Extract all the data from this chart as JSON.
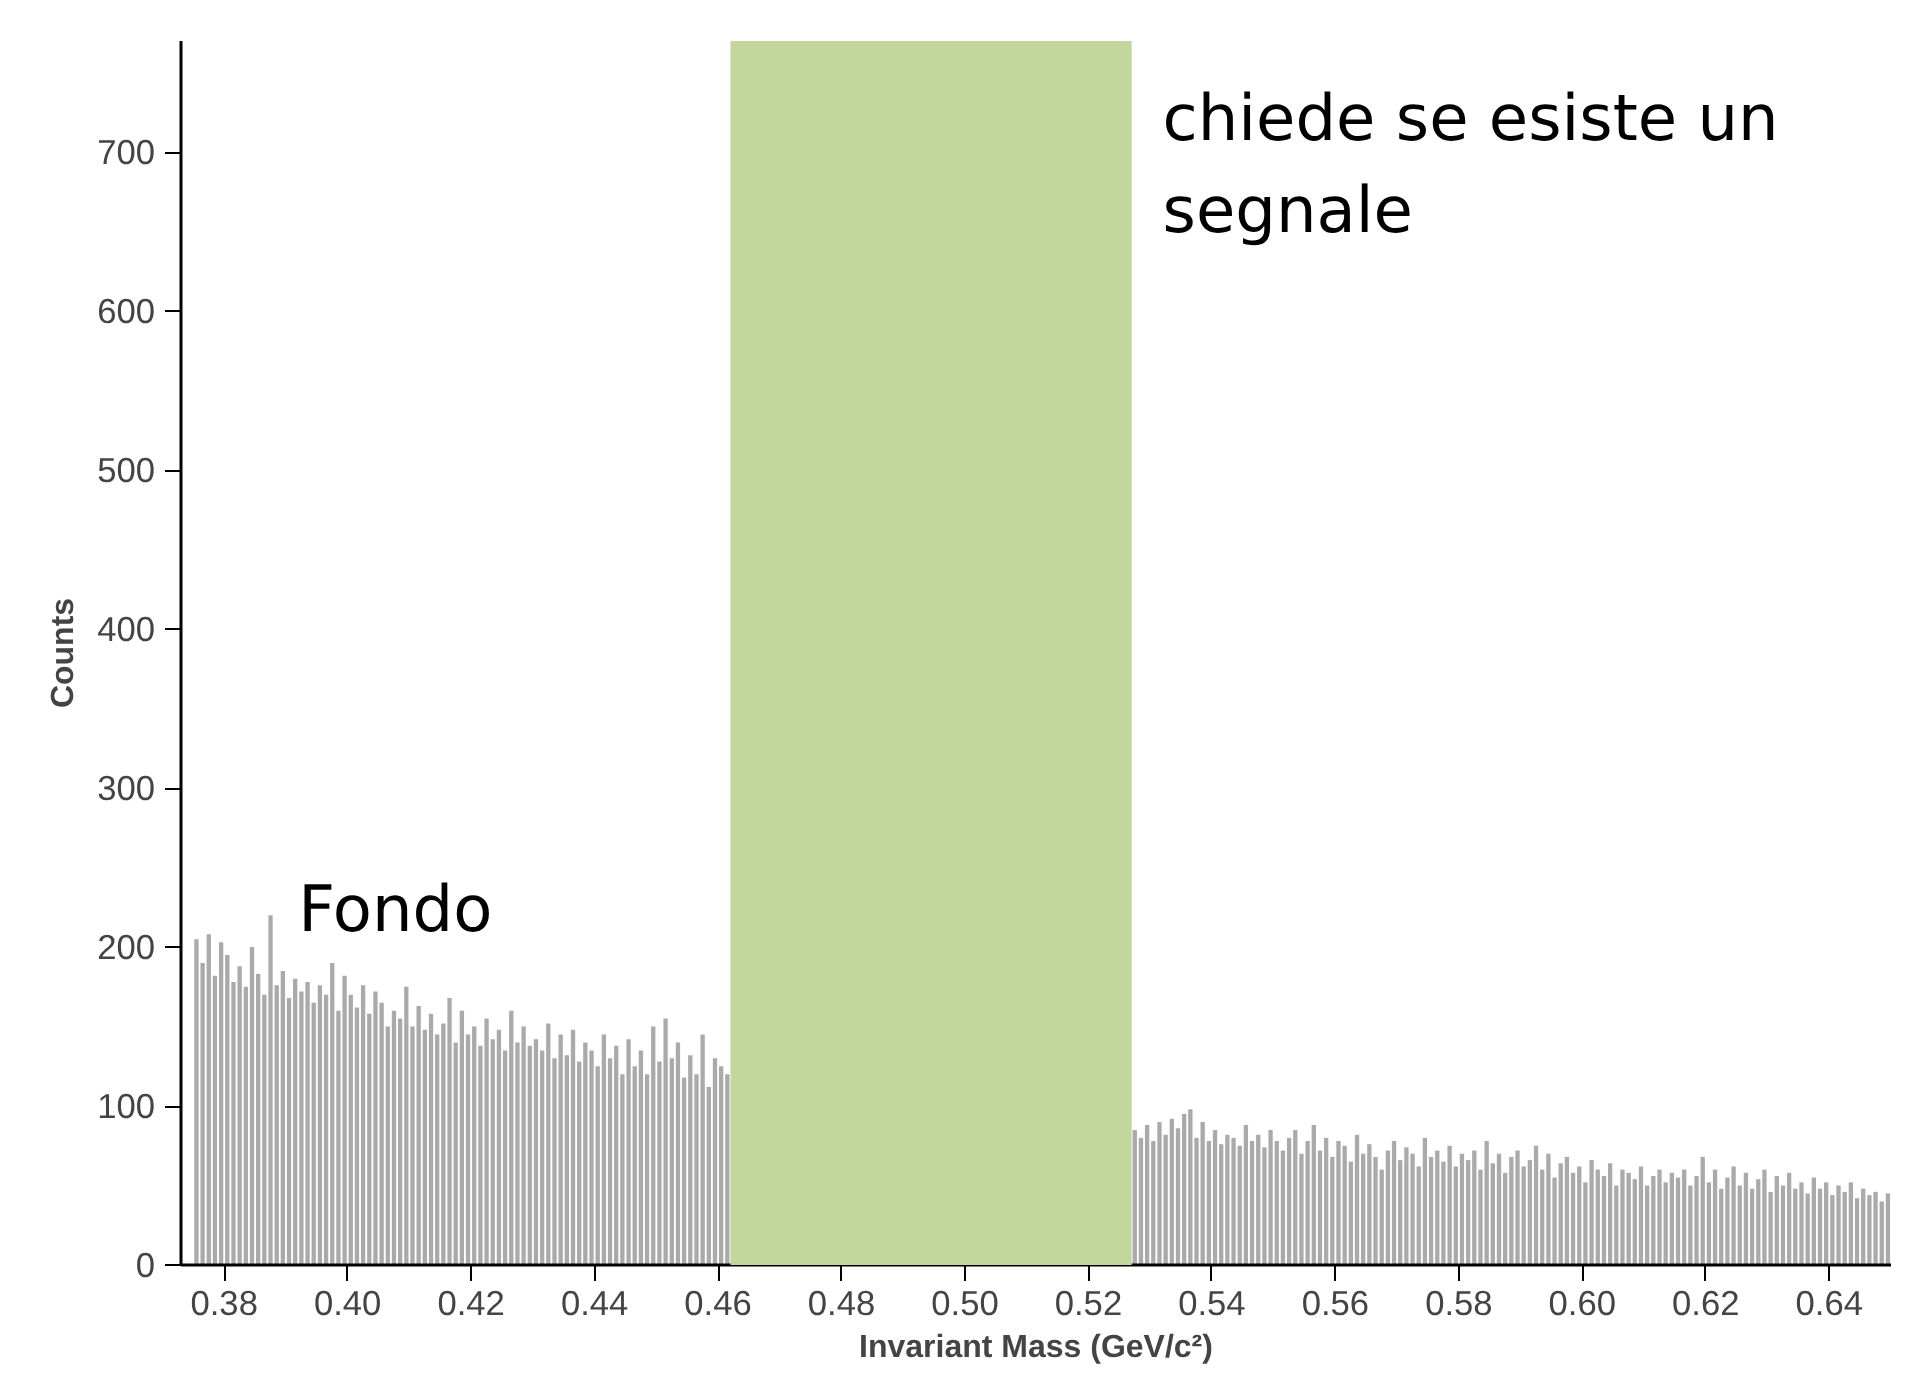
{
  "chart_data": {
    "type": "histogram",
    "xlabel": "Invariant Mass (GeV/c²)",
    "ylabel": "Counts",
    "color": "#aaaaaa",
    "bins": [
      0.375,
      0.376,
      0.377,
      0.378,
      0.379,
      0.38,
      0.381,
      0.382,
      0.383,
      0.384,
      0.385,
      0.386,
      0.387,
      0.388,
      0.389,
      0.39,
      0.391,
      0.392,
      0.393,
      0.394,
      0.395,
      0.396,
      0.397,
      0.398,
      0.399,
      0.4,
      0.401,
      0.402,
      0.403,
      0.404,
      0.405,
      0.406,
      0.407,
      0.408,
      0.409,
      0.41,
      0.411,
      0.412,
      0.413,
      0.414,
      0.415,
      0.416,
      0.417,
      0.418,
      0.419,
      0.42,
      0.421,
      0.422,
      0.423,
      0.424,
      0.425,
      0.426,
      0.427,
      0.428,
      0.429,
      0.43,
      0.431,
      0.432,
      0.433,
      0.434,
      0.435,
      0.436,
      0.437,
      0.438,
      0.439,
      0.44,
      0.441,
      0.442,
      0.443,
      0.444,
      0.445,
      0.446,
      0.447,
      0.448,
      0.449,
      0.45,
      0.451,
      0.452,
      0.453,
      0.454,
      0.455,
      0.456,
      0.457,
      0.458,
      0.459,
      0.46,
      0.461,
      0.462,
      0.463,
      0.464,
      0.465,
      0.466,
      0.467,
      0.468,
      0.469,
      0.47,
      0.471,
      0.472,
      0.473,
      0.474,
      0.475,
      0.476,
      0.477,
      0.478,
      0.479,
      0.48,
      0.481,
      0.482,
      0.483,
      0.484,
      0.485,
      0.486,
      0.487,
      0.488,
      0.489,
      0.49,
      0.491,
      0.492,
      0.493,
      0.494,
      0.495,
      0.496,
      0.497,
      0.498,
      0.499,
      0.5,
      0.501,
      0.502,
      0.503,
      0.504,
      0.505,
      0.506,
      0.507,
      0.508,
      0.509,
      0.51,
      0.511,
      0.512,
      0.513,
      0.514,
      0.515,
      0.516,
      0.517,
      0.518,
      0.519,
      0.52,
      0.521,
      0.522,
      0.523,
      0.524,
      0.525,
      0.526,
      0.527,
      0.528,
      0.529,
      0.53,
      0.531,
      0.532,
      0.533,
      0.534,
      0.535,
      0.536,
      0.537,
      0.538,
      0.539,
      0.54,
      0.541,
      0.542,
      0.543,
      0.544,
      0.545,
      0.546,
      0.547,
      0.548,
      0.549,
      0.55,
      0.551,
      0.552,
      0.553,
      0.554,
      0.555,
      0.556,
      0.557,
      0.558,
      0.559,
      0.56,
      0.561,
      0.562,
      0.563,
      0.564,
      0.565,
      0.566,
      0.567,
      0.568,
      0.569,
      0.57,
      0.571,
      0.572,
      0.573,
      0.574,
      0.575,
      0.576,
      0.577,
      0.578,
      0.579,
      0.58,
      0.581,
      0.582,
      0.583,
      0.584,
      0.585,
      0.586,
      0.587,
      0.588,
      0.589,
      0.59,
      0.591,
      0.592,
      0.593,
      0.594,
      0.595,
      0.596,
      0.597,
      0.598,
      0.599,
      0.6,
      0.601,
      0.602,
      0.603,
      0.604,
      0.605,
      0.606,
      0.607,
      0.608,
      0.609,
      0.61,
      0.611,
      0.612,
      0.613,
      0.614,
      0.615,
      0.616,
      0.617,
      0.618,
      0.619,
      0.62,
      0.621,
      0.622,
      0.623,
      0.624,
      0.625,
      0.626,
      0.627,
      0.628,
      0.629,
      0.63,
      0.631,
      0.632,
      0.633,
      0.634,
      0.635,
      0.636,
      0.637,
      0.638,
      0.639,
      0.64,
      0.641,
      0.642,
      0.643,
      0.644,
      0.645,
      0.646,
      0.647,
      0.648,
      0.649,
      0.65
    ],
    "values": [
      205,
      190,
      208,
      182,
      203,
      195,
      178,
      188,
      175,
      200,
      183,
      170,
      220,
      176,
      185,
      168,
      180,
      172,
      178,
      165,
      176,
      170,
      190,
      160,
      182,
      170,
      162,
      176,
      158,
      172,
      165,
      150,
      160,
      155,
      175,
      150,
      163,
      148,
      158,
      145,
      152,
      168,
      140,
      160,
      145,
      150,
      138,
      155,
      142,
      148,
      135,
      160,
      140,
      150,
      138,
      142,
      135,
      152,
      130,
      145,
      132,
      148,
      128,
      140,
      135,
      125,
      145,
      130,
      138,
      120,
      142,
      125,
      135,
      120,
      150,
      128,
      155,
      130,
      140,
      118,
      132,
      120,
      145,
      112,
      130,
      125,
      120,
      null,
      null,
      null,
      null,
      null,
      null,
      null,
      null,
      null,
      null,
      null,
      null,
      null,
      null,
      null,
      null,
      null,
      null,
      null,
      null,
      null,
      null,
      null,
      null,
      null,
      null,
      null,
      null,
      null,
      null,
      null,
      null,
      null,
      null,
      null,
      null,
      null,
      null,
      null,
      null,
      null,
      null,
      null,
      null,
      null,
      null,
      null,
      null,
      null,
      null,
      null,
      null,
      null,
      null,
      null,
      null,
      null,
      null,
      null,
      null,
      null,
      null,
      null,
      null,
      null,
      85,
      80,
      88,
      78,
      90,
      82,
      92,
      86,
      95,
      98,
      80,
      90,
      78,
      85,
      76,
      82,
      80,
      75,
      88,
      78,
      82,
      74,
      85,
      78,
      72,
      80,
      85,
      70,
      78,
      88,
      72,
      80,
      68,
      78,
      75,
      65,
      82,
      70,
      76,
      68,
      60,
      72,
      78,
      66,
      74,
      70,
      62,
      80,
      68,
      72,
      65,
      75,
      62,
      70,
      66,
      72,
      60,
      78,
      64,
      70,
      58,
      68,
      72,
      62,
      66,
      75,
      60,
      70,
      55,
      64,
      68,
      58,
      62,
      52,
      66,
      60,
      56,
      64,
      50,
      60,
      58,
      54,
      62,
      50,
      56,
      60,
      52,
      58,
      55,
      60,
      50,
      56,
      68,
      52,
      60,
      48,
      55,
      62,
      50,
      58,
      48,
      54,
      60,
      46,
      56,
      50,
      58,
      48,
      52,
      45,
      55,
      48,
      52,
      44,
      50,
      46,
      52,
      42,
      48,
      44,
      46,
      40,
      45
    ],
    "xlim": [
      0.373,
      0.65
    ],
    "ylim": [
      0,
      770
    ],
    "xticks": [
      {
        "value": 0.38,
        "label": "0.38"
      },
      {
        "value": 0.4,
        "label": "0.40"
      },
      {
        "value": 0.42,
        "label": "0.42"
      },
      {
        "value": 0.44,
        "label": "0.44"
      },
      {
        "value": 0.46,
        "label": "0.46"
      },
      {
        "value": 0.48,
        "label": "0.48"
      },
      {
        "value": 0.5,
        "label": "0.50"
      },
      {
        "value": 0.52,
        "label": "0.52"
      },
      {
        "value": 0.54,
        "label": "0.54"
      },
      {
        "value": 0.56,
        "label": "0.56"
      },
      {
        "value": 0.58,
        "label": "0.58"
      },
      {
        "value": 0.6,
        "label": "0.60"
      },
      {
        "value": 0.62,
        "label": "0.62"
      },
      {
        "value": 0.64,
        "label": "0.64"
      }
    ],
    "yticks": [
      0,
      100,
      200,
      300,
      400,
      500,
      600,
      700
    ],
    "bands": [
      {
        "axis": "x",
        "from": 0.462,
        "to": 0.527,
        "color": "#c3d69b"
      }
    ],
    "annotations": [
      "Fondo",
      "chiede se esiste un segnale"
    ]
  }
}
